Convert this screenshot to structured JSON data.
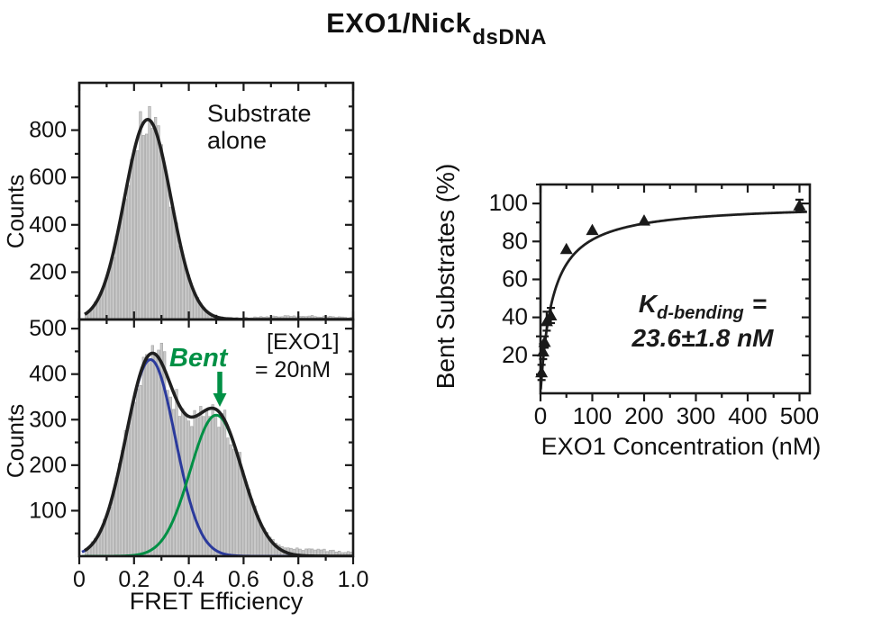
{
  "title": {
    "main": "EXO1/Nick",
    "subscript": "dsDNA"
  },
  "colors": {
    "bar_fill": "#c9c9c9",
    "bar_edge": "#a3a3a3",
    "fit_black": "#1f1f1f",
    "bent_green": "#009045",
    "unbent_blue": "#2b3a9c",
    "axis": "#1a1a1a",
    "text": "#111111"
  },
  "fret_histograms": {
    "ylabel": "Counts",
    "xlabel": "FRET Efficiency",
    "top_annotation_line1": "Substrate",
    "top_annotation_line2": "alone",
    "bottom_annotation_bent": "Bent",
    "bottom_annotation_exo1_line1": "[EXO1]",
    "bottom_annotation_exo1_line2": "= 20nM"
  },
  "binding_plot": {
    "ylabel": "Bent Substrates (%)",
    "xlabel": "EXO1 Concentration (nM)",
    "kd_label_k": "K",
    "kd_label_sub": "d-bending",
    "kd_label_eq": "=",
    "kd_value": "23.6±1.8 nM"
  },
  "chart_data": [
    {
      "id": "fret-top",
      "type": "bar",
      "subtype": "fret-histogram",
      "annotation": "Substrate alone",
      "xlim": [
        0,
        1.0
      ],
      "ylim": [
        0,
        1000
      ],
      "xticks": [
        {
          "v": 0,
          "label": "0"
        },
        {
          "v": 0.2,
          "label": "0.2"
        },
        {
          "v": 0.4,
          "label": "0.4"
        },
        {
          "v": 0.6,
          "label": "0.6"
        },
        {
          "v": 0.8,
          "label": "0.8"
        },
        {
          "v": 1.0,
          "label": "1.0"
        }
      ],
      "x_minor_step": 0.1,
      "yticks": [
        {
          "v": 200,
          "label": "200"
        },
        {
          "v": 400,
          "label": "400"
        },
        {
          "v": 600,
          "label": "600"
        },
        {
          "v": 800,
          "label": "800"
        }
      ],
      "y_minor_step": 100,
      "show_x_labels": false,
      "bin_start": 0.02,
      "bin_end": 1.0,
      "bin_width": 0.011,
      "noise_seed": 13,
      "noise_frac": 0.07,
      "fit_components": [
        {
          "name": "substrate-alone-gaussian",
          "amp": 845,
          "mu": 0.25,
          "sigma": 0.085,
          "color": null
        }
      ],
      "bar_only_components": [
        {
          "amp": 12,
          "mu": 0.8,
          "sigma": 0.15
        }
      ]
    },
    {
      "id": "fret-bottom",
      "type": "bar",
      "subtype": "fret-histogram",
      "annotation": "Bent / [EXO1] = 20nM",
      "xlim": [
        0,
        1.0
      ],
      "ylim": [
        0,
        520
      ],
      "xticks": [
        {
          "v": 0,
          "label": "0"
        },
        {
          "v": 0.2,
          "label": "0.2"
        },
        {
          "v": 0.4,
          "label": "0.4"
        },
        {
          "v": 0.6,
          "label": "0.6"
        },
        {
          "v": 0.8,
          "label": "0.8"
        },
        {
          "v": 1.0,
          "label": "1.0"
        }
      ],
      "x_minor_step": 0.1,
      "yticks": [
        {
          "v": 100,
          "label": "100"
        },
        {
          "v": 200,
          "label": "200"
        },
        {
          "v": 300,
          "label": "300"
        },
        {
          "v": 400,
          "label": "400"
        },
        {
          "v": 500,
          "label": "500"
        }
      ],
      "y_minor_step": 50,
      "show_x_labels": true,
      "bin_start": 0.02,
      "bin_end": 1.0,
      "bin_width": 0.011,
      "noise_seed": 5,
      "noise_frac": 0.08,
      "fit_components": [
        {
          "name": "unbent-gaussian",
          "amp": 432,
          "mu": 0.26,
          "sigma": 0.09,
          "color": "#2b3a9c"
        },
        {
          "name": "bent-gaussian",
          "amp": 310,
          "mu": 0.5,
          "sigma": 0.095,
          "color": "#009045"
        }
      ],
      "bar_only_components": [
        {
          "amp": 12,
          "mu": 0.85,
          "sigma": 0.12
        }
      ]
    },
    {
      "id": "binding-curve",
      "type": "scatter",
      "marker": "triangle-up",
      "xlim": [
        0,
        520
      ],
      "ylim": [
        0,
        110
      ],
      "xticks": [
        {
          "v": 0,
          "label": "0"
        },
        {
          "v": 100,
          "label": "100"
        },
        {
          "v": 200,
          "label": "200"
        },
        {
          "v": 300,
          "label": "300"
        },
        {
          "v": 400,
          "label": "400"
        },
        {
          "v": 500,
          "label": "500"
        }
      ],
      "x_minor_step": 50,
      "yticks": [
        {
          "v": 20,
          "label": "20"
        },
        {
          "v": 40,
          "label": "40"
        },
        {
          "v": 60,
          "label": "60"
        },
        {
          "v": 80,
          "label": "80"
        },
        {
          "v": 100,
          "label": "100"
        }
      ],
      "y_minor_step": 10,
      "xlabel": "EXO1 Concentration (nM)",
      "ylabel": "Bent Substrates (%)",
      "points": [
        {
          "x": 2,
          "y": 11,
          "err": 4
        },
        {
          "x": 5,
          "y": 22,
          "err": 4
        },
        {
          "x": 8,
          "y": 27,
          "err": 3
        },
        {
          "x": 12,
          "y": 38,
          "err": 5
        },
        {
          "x": 20,
          "y": 41,
          "err": 4
        },
        {
          "x": 50,
          "y": 76,
          "err": 0
        },
        {
          "x": 100,
          "y": 86,
          "err": 0
        },
        {
          "x": 200,
          "y": 91,
          "err": 0
        },
        {
          "x": 500,
          "y": 99,
          "err": 3
        }
      ],
      "fit": {
        "model": "hyperbolic",
        "bmax": 100,
        "kd_nM": 23.6,
        "kd_err_nM": 1.8
      }
    }
  ]
}
